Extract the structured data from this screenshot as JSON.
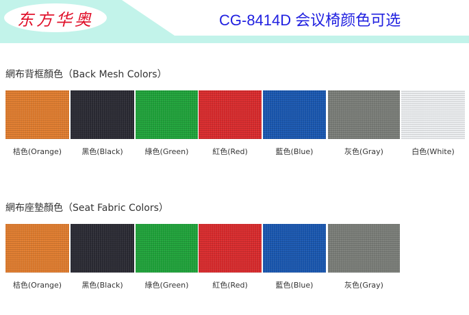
{
  "header": {
    "logo": "东方华奥",
    "title": "CG-8414D 会议椅颜色可选",
    "mint": "#c2f3ea"
  },
  "sections": [
    {
      "title": "網布背框顏色（Back Mesh Colors）",
      "items": [
        {
          "label": "桔色(Orange)",
          "color": "#e07c2e"
        },
        {
          "label": "黑色(Black)",
          "color": "#2a2a33"
        },
        {
          "label": "綠色(Green)",
          "color": "#1fa33a"
        },
        {
          "label": "紅色(Red)",
          "color": "#d92a2c"
        },
        {
          "label": "藍色(Blue)",
          "color": "#1957b0"
        },
        {
          "label": "灰色(Gray)",
          "color": "#7a7d78"
        },
        {
          "label": "白色(White)",
          "color": "#eceef0"
        }
      ]
    },
    {
      "title": "網布座墊顏色（Seat Fabric Colors）",
      "items": [
        {
          "label": "桔色(Orange)",
          "color": "#e07c2e"
        },
        {
          "label": "黑色(Black)",
          "color": "#2a2a33"
        },
        {
          "label": "綠色(Green)",
          "color": "#1fa33a"
        },
        {
          "label": "紅色(Red)",
          "color": "#d92a2c"
        },
        {
          "label": "藍色(Blue)",
          "color": "#1957b0"
        },
        {
          "label": "灰色(Gray)",
          "color": "#7a7d78"
        }
      ]
    }
  ]
}
